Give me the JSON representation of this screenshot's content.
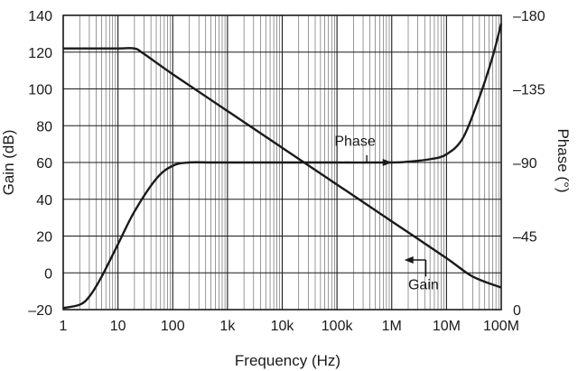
{
  "chart_data": {
    "type": "line",
    "title": "",
    "xlabel": "Frequency (Hz)",
    "ylabel": "Gain (dB)",
    "y2label": "Phase (°)",
    "xscale": "log",
    "xlim": [
      1,
      100000000
    ],
    "ylim": [
      -20,
      140
    ],
    "y2lim": [
      -180,
      0
    ],
    "grid": true,
    "x_ticks": [
      {
        "value": 1,
        "label": "1"
      },
      {
        "value": 10,
        "label": "10"
      },
      {
        "value": 100,
        "label": "100"
      },
      {
        "value": 1000,
        "label": "1k"
      },
      {
        "value": 10000,
        "label": "10k"
      },
      {
        "value": 100000,
        "label": "100k"
      },
      {
        "value": 1000000,
        "label": "1M"
      },
      {
        "value": 10000000,
        "label": "10M"
      },
      {
        "value": 100000000,
        "label": "100M"
      }
    ],
    "y_ticks": [
      -20,
      0,
      20,
      40,
      60,
      80,
      100,
      120,
      140
    ],
    "y2_ticks": [
      0,
      -45,
      -90,
      -135,
      -180
    ],
    "series": [
      {
        "name": "Gain",
        "axis": "left",
        "x": [
          1,
          10,
          20,
          30,
          100,
          1000,
          10000,
          100000,
          1000000,
          10000000,
          30000000,
          100000000
        ],
        "y": [
          122,
          122,
          122,
          119,
          108,
          88,
          68,
          48,
          28,
          8,
          -2,
          -8
        ]
      },
      {
        "name": "Phase",
        "axis": "right",
        "x": [
          1,
          2,
          3,
          5,
          10,
          20,
          50,
          100,
          200,
          500,
          1000,
          10000,
          100000,
          1000000,
          2000000,
          5000000,
          10000000,
          20000000,
          40000000,
          70000000,
          100000000
        ],
        "y": [
          -1,
          -3,
          -8,
          -20,
          -40,
          -60,
          -80,
          -88,
          -90,
          -90,
          -90,
          -90,
          -90,
          -90,
          -90.5,
          -92,
          -95,
          -105,
          -130,
          -155,
          -175
        ]
      }
    ],
    "annotations": [
      {
        "text": "Phase",
        "series": "Phase"
      },
      {
        "text": "Gain",
        "series": "Gain"
      }
    ]
  }
}
